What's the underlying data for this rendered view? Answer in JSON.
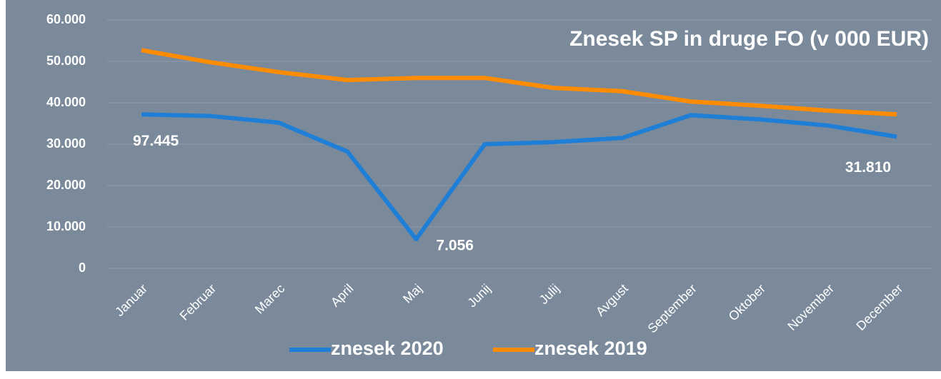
{
  "chart_data": {
    "type": "line",
    "title": "Znesek SP in druge FO (v 000 EUR)",
    "categories": [
      "Januar",
      "Februar",
      "Marec",
      "April",
      "Maj",
      "Junij",
      "Julij",
      "Avgust",
      "September",
      "Oktober",
      "November",
      "December"
    ],
    "series": [
      {
        "name": "znesek 2020",
        "color": "#1f7fd6",
        "values": [
          37200,
          36800,
          35200,
          28200,
          7056,
          30000,
          30500,
          31500,
          37000,
          36000,
          34500,
          31810
        ],
        "value_labels": [
          null,
          null,
          null,
          null,
          "7.056",
          null,
          null,
          null,
          null,
          null,
          null,
          "31.810"
        ]
      },
      {
        "name": "znesek 2019",
        "color": "#ff8c00",
        "values": [
          52700,
          49800,
          47400,
          45500,
          46000,
          46000,
          43600,
          42800,
          40300,
          39300,
          38100,
          37200
        ]
      }
    ],
    "annotations": [
      "97.445"
    ],
    "ylim": [
      0,
      60000
    ],
    "yticks": [
      {
        "value": 0,
        "label": "0"
      },
      {
        "value": 10000,
        "label": "10.000"
      },
      {
        "value": 20000,
        "label": "20.000"
      },
      {
        "value": 30000,
        "label": "30.000"
      },
      {
        "value": 40000,
        "label": "40.000"
      },
      {
        "value": 50000,
        "label": "50.000"
      },
      {
        "value": 60000,
        "label": "60.000"
      }
    ],
    "grid": true,
    "legend": "bottom"
  }
}
